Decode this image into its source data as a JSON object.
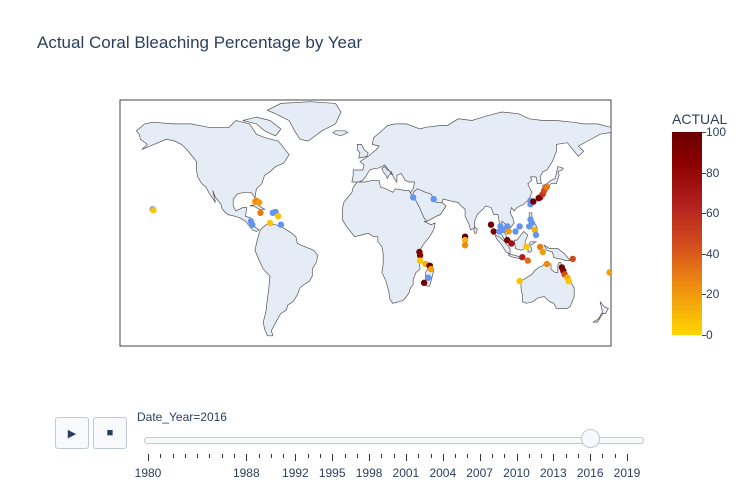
{
  "title": "Actual Coral Bleaching Percentage by Year",
  "colorbar": {
    "title": "ACTUAL",
    "ticks": [
      "100",
      "80",
      "60",
      "40",
      "20",
      "0"
    ],
    "range": [
      0,
      100
    ],
    "colors": [
      "#ffd700",
      "#ee8a12",
      "#d24b1e",
      "#b21f1f",
      "#8b0000",
      "#6b0000"
    ]
  },
  "map": {
    "projection": "equirectangular",
    "land_color": "#e5ecf6",
    "coast_color": "#555555",
    "zero_color": "#6495ed",
    "points": [
      {
        "lon": -156,
        "lat": 20,
        "value": 0
      },
      {
        "lon": -155.5,
        "lat": 19.5,
        "value": 5
      },
      {
        "lon": -84,
        "lat": 13,
        "value": 0
      },
      {
        "lon": -83,
        "lat": 11,
        "value": 0
      },
      {
        "lon": -81,
        "lat": 24.5,
        "value": 10
      },
      {
        "lon": -80,
        "lat": 25,
        "value": 20
      },
      {
        "lon": -78,
        "lat": 24,
        "value": 15
      },
      {
        "lon": -77,
        "lat": 18,
        "value": 25
      },
      {
        "lon": -68,
        "lat": 18,
        "value": 0
      },
      {
        "lon": -66,
        "lat": 18.5,
        "value": 0
      },
      {
        "lon": -64,
        "lat": 16,
        "value": 5
      },
      {
        "lon": -62,
        "lat": 11,
        "value": 0
      },
      {
        "lon": -70,
        "lat": 12,
        "value": 5
      },
      {
        "lon": 35,
        "lat": 27,
        "value": 0
      },
      {
        "lon": 50,
        "lat": 26,
        "value": 0
      },
      {
        "lon": 39.5,
        "lat": -5,
        "value": 95
      },
      {
        "lon": 40,
        "lat": -7,
        "value": 80
      },
      {
        "lon": 40,
        "lat": -10,
        "value": 5
      },
      {
        "lon": 44,
        "lat": -12,
        "value": 10
      },
      {
        "lon": 47,
        "lat": -13,
        "value": 100
      },
      {
        "lon": 48,
        "lat": -15,
        "value": 15
      },
      {
        "lon": 46,
        "lat": -20,
        "value": 0
      },
      {
        "lon": 43,
        "lat": -23,
        "value": 95
      },
      {
        "lon": 73,
        "lat": 4,
        "value": 100
      },
      {
        "lon": 73,
        "lat": 2,
        "value": 10
      },
      {
        "lon": 73,
        "lat": -1,
        "value": 20
      },
      {
        "lon": 92,
        "lat": 11,
        "value": 95
      },
      {
        "lon": 94,
        "lat": 7,
        "value": 85
      },
      {
        "lon": 98,
        "lat": 7,
        "value": 0
      },
      {
        "lon": 99,
        "lat": 10,
        "value": 0
      },
      {
        "lon": 101,
        "lat": 8,
        "value": 0
      },
      {
        "lon": 104,
        "lat": 10,
        "value": 0
      },
      {
        "lon": 105,
        "lat": 7,
        "value": 15
      },
      {
        "lon": 104,
        "lat": 2,
        "value": 90
      },
      {
        "lon": 107,
        "lat": 0,
        "value": 70
      },
      {
        "lon": 110,
        "lat": 7,
        "value": 0
      },
      {
        "lon": 113,
        "lat": 10,
        "value": 0
      },
      {
        "lon": 115,
        "lat": -8,
        "value": 60
      },
      {
        "lon": 119,
        "lat": -10,
        "value": 30
      },
      {
        "lon": 118,
        "lat": -2,
        "value": 5
      },
      {
        "lon": 120,
        "lat": 10,
        "value": 0
      },
      {
        "lon": 122,
        "lat": 12,
        "value": 0
      },
      {
        "lon": 121,
        "lat": 14,
        "value": 0
      },
      {
        "lon": 124,
        "lat": 8,
        "value": 10
      },
      {
        "lon": 125,
        "lat": 5,
        "value": 0
      },
      {
        "lon": 128,
        "lat": -2,
        "value": 25
      },
      {
        "lon": 130,
        "lat": -5,
        "value": 15
      },
      {
        "lon": 121,
        "lat": 23,
        "value": 0
      },
      {
        "lon": 121,
        "lat": 25,
        "value": 0
      },
      {
        "lon": 123,
        "lat": 24.5,
        "value": 100
      },
      {
        "lon": 127,
        "lat": 26.5,
        "value": 95
      },
      {
        "lon": 128,
        "lat": 27,
        "value": 85
      },
      {
        "lon": 130,
        "lat": 29,
        "value": 50
      },
      {
        "lon": 131,
        "lat": 31,
        "value": 40
      },
      {
        "lon": 133,
        "lat": 33,
        "value": 25
      },
      {
        "lon": 113,
        "lat": -22,
        "value": 5
      },
      {
        "lon": 133,
        "lat": -12,
        "value": 20
      },
      {
        "lon": 144,
        "lat": -14,
        "value": 95
      },
      {
        "lon": 145,
        "lat": -16,
        "value": 85
      },
      {
        "lon": 146,
        "lat": -18,
        "value": 40
      },
      {
        "lon": 148,
        "lat": -20,
        "value": 10
      },
      {
        "lon": 149,
        "lat": -22,
        "value": 5
      },
      {
        "lon": 152,
        "lat": -9,
        "value": 40
      },
      {
        "lon": 179,
        "lat": -17,
        "value": 15
      }
    ]
  },
  "slider": {
    "label": "Date_Year=2016",
    "value": 2016,
    "min": 1980,
    "max": 2019,
    "tick_labels": [
      "1980",
      "1988",
      "1992",
      "1995",
      "1998",
      "2001",
      "2004",
      "2007",
      "2010",
      "2013",
      "2016",
      "2019"
    ]
  },
  "controls": {
    "play_icon": "▶",
    "stop_icon": "■"
  }
}
